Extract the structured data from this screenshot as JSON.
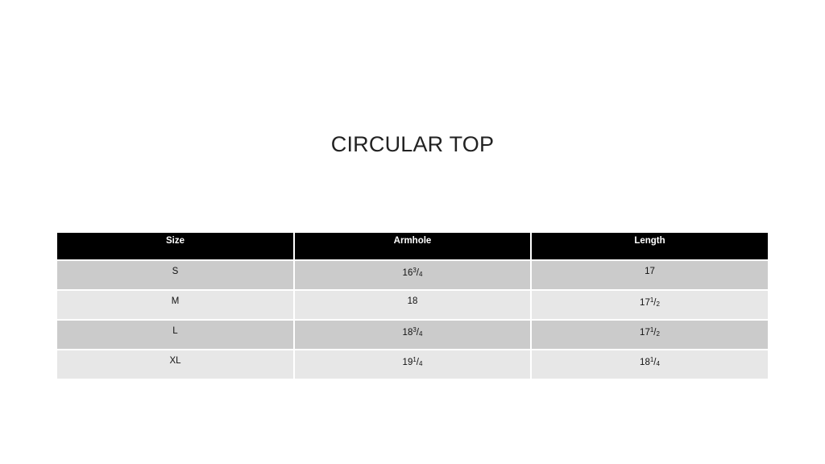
{
  "title": "CIRCULAR TOP",
  "table": {
    "headers": [
      "Size",
      "Armhole",
      "Length"
    ],
    "rows": [
      {
        "size": "S",
        "armhole": {
          "whole": "16",
          "num": "3",
          "den": "4"
        },
        "length": {
          "whole": "17",
          "num": "",
          "den": ""
        }
      },
      {
        "size": "M",
        "armhole": {
          "whole": "18",
          "num": "",
          "den": ""
        },
        "length": {
          "whole": "17",
          "num": "1",
          "den": "2"
        }
      },
      {
        "size": "L",
        "armhole": {
          "whole": "18",
          "num": "3",
          "den": "4"
        },
        "length": {
          "whole": "17",
          "num": "1",
          "den": "2"
        }
      },
      {
        "size": "XL",
        "armhole": {
          "whole": "19",
          "num": "1",
          "den": "4"
        },
        "length": {
          "whole": "18",
          "num": "1",
          "den": "4"
        }
      }
    ],
    "colors": {
      "header_bg": "#000000",
      "row_dark": "#cbcbcb",
      "row_light": "#e7e7e7"
    }
  }
}
